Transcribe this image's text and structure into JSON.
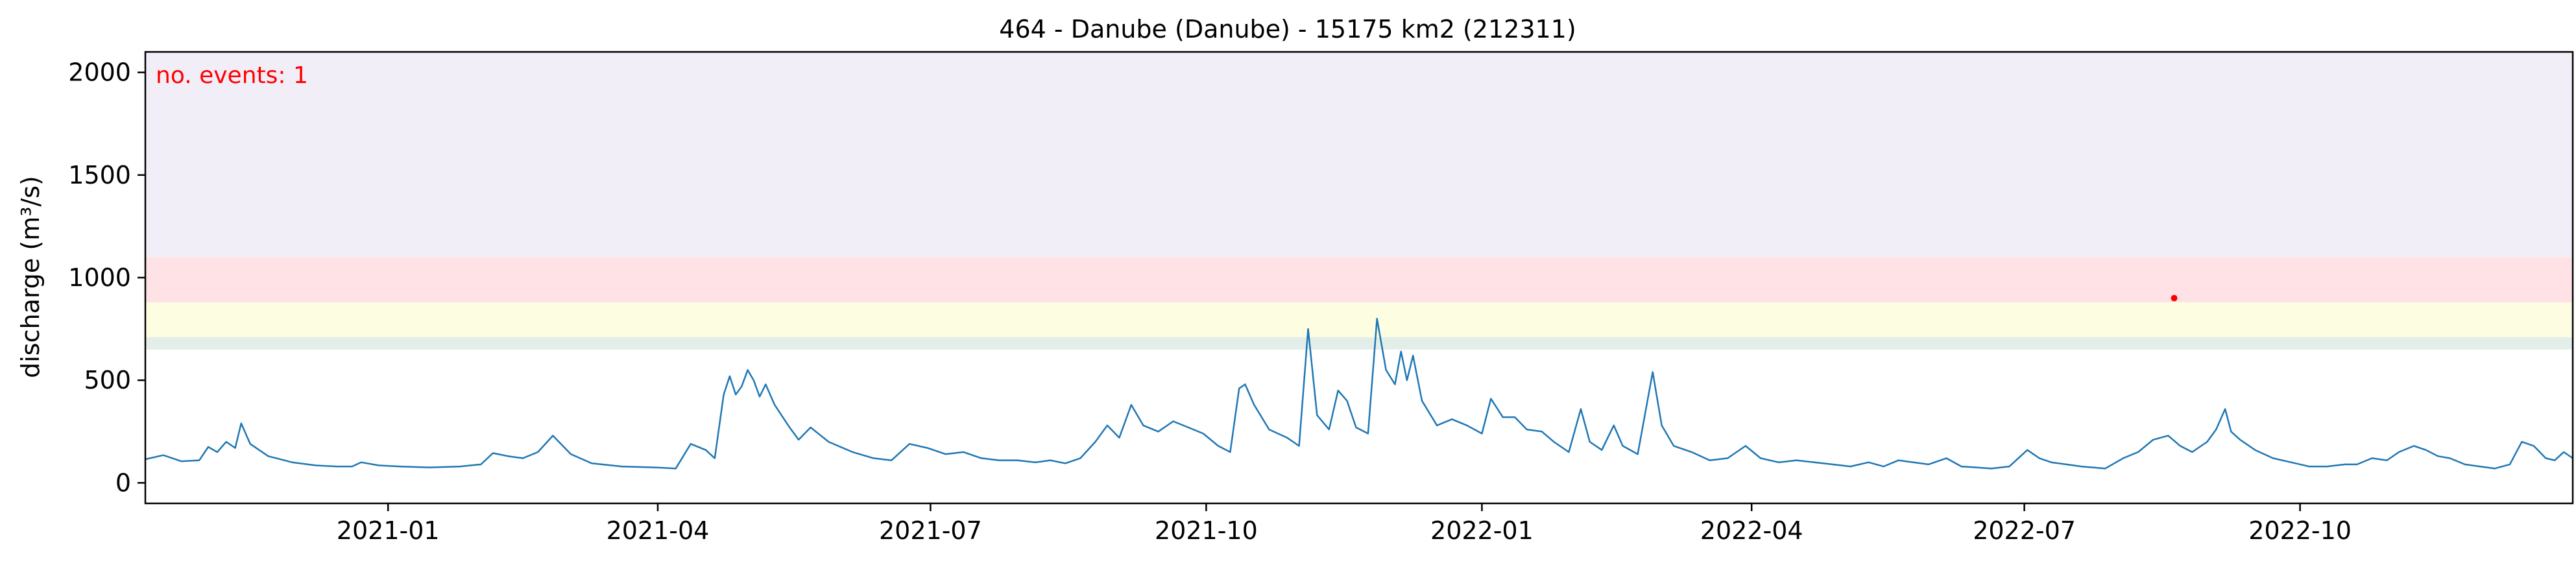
{
  "chart_data": {
    "type": "line",
    "title": "464 - Danube (Danube) - 15175 km2 (212311)",
    "xlabel": "",
    "ylabel": "discharge (m³/s)",
    "xlim": [
      "2020-10-12",
      "2022-12-31"
    ],
    "ylim": [
      -100,
      2100
    ],
    "x_ticks": [
      "2021-01",
      "2021-04",
      "2021-07",
      "2021-10",
      "2022-01",
      "2022-04",
      "2022-07",
      "2022-10"
    ],
    "x_tick_dates": [
      "2021-01-01",
      "2021-04-01",
      "2021-07-01",
      "2021-10-01",
      "2022-01-01",
      "2022-04-01",
      "2022-07-01",
      "2022-10-01"
    ],
    "y_ticks": [
      0,
      500,
      1000,
      1500,
      2000
    ],
    "grid": false,
    "threshold_bands": [
      {
        "from": 650,
        "to": 710,
        "color": "#e3eee8"
      },
      {
        "from": 710,
        "to": 880,
        "color": "#fdfde2"
      },
      {
        "from": 880,
        "to": 1100,
        "color": "#fee2e5"
      },
      {
        "from": 1100,
        "to": 2100,
        "color": "#f1eef8"
      }
    ],
    "annotation": {
      "text": "no. events: 1",
      "color": "#ff0000",
      "position": "top-left"
    },
    "events": [
      {
        "x": "2022-08-20",
        "y": 900,
        "color": "#ff0000"
      }
    ],
    "series": [
      {
        "color": "#1f77b4",
        "points": [
          [
            "2020-10-12",
            115
          ],
          [
            "2020-10-18",
            135
          ],
          [
            "2020-10-24",
            105
          ],
          [
            "2020-10-30",
            110
          ],
          [
            "2020-11-02",
            175
          ],
          [
            "2020-11-05",
            150
          ],
          [
            "2020-11-08",
            200
          ],
          [
            "2020-11-11",
            170
          ],
          [
            "2020-11-13",
            290
          ],
          [
            "2020-11-16",
            190
          ],
          [
            "2020-11-22",
            130
          ],
          [
            "2020-11-30",
            100
          ],
          [
            "2020-12-08",
            85
          ],
          [
            "2020-12-15",
            80
          ],
          [
            "2020-12-20",
            80
          ],
          [
            "2020-12-23",
            100
          ],
          [
            "2020-12-29",
            85
          ],
          [
            "2021-01-05",
            80
          ],
          [
            "2021-01-15",
            75
          ],
          [
            "2021-01-25",
            80
          ],
          [
            "2021-02-01",
            90
          ],
          [
            "2021-02-05",
            145
          ],
          [
            "2021-02-10",
            130
          ],
          [
            "2021-02-15",
            120
          ],
          [
            "2021-02-20",
            150
          ],
          [
            "2021-02-25",
            230
          ],
          [
            "2021-03-03",
            140
          ],
          [
            "2021-03-10",
            95
          ],
          [
            "2021-03-20",
            80
          ],
          [
            "2021-03-31",
            75
          ],
          [
            "2021-04-07",
            70
          ],
          [
            "2021-04-12",
            190
          ],
          [
            "2021-04-17",
            160
          ],
          [
            "2021-04-20",
            120
          ],
          [
            "2021-04-23",
            430
          ],
          [
            "2021-04-25",
            520
          ],
          [
            "2021-04-27",
            430
          ],
          [
            "2021-04-29",
            470
          ],
          [
            "2021-05-01",
            550
          ],
          [
            "2021-05-03",
            500
          ],
          [
            "2021-05-05",
            420
          ],
          [
            "2021-05-07",
            480
          ],
          [
            "2021-05-10",
            380
          ],
          [
            "2021-05-15",
            270
          ],
          [
            "2021-05-18",
            210
          ],
          [
            "2021-05-22",
            270
          ],
          [
            "2021-05-28",
            200
          ],
          [
            "2021-06-05",
            150
          ],
          [
            "2021-06-12",
            120
          ],
          [
            "2021-06-18",
            110
          ],
          [
            "2021-06-24",
            190
          ],
          [
            "2021-06-30",
            170
          ],
          [
            "2021-07-06",
            140
          ],
          [
            "2021-07-12",
            150
          ],
          [
            "2021-07-18",
            120
          ],
          [
            "2021-07-24",
            110
          ],
          [
            "2021-07-30",
            110
          ],
          [
            "2021-08-05",
            100
          ],
          [
            "2021-08-10",
            110
          ],
          [
            "2021-08-15",
            95
          ],
          [
            "2021-08-20",
            120
          ],
          [
            "2021-08-25",
            200
          ],
          [
            "2021-08-29",
            280
          ],
          [
            "2021-09-02",
            220
          ],
          [
            "2021-09-06",
            380
          ],
          [
            "2021-09-10",
            280
          ],
          [
            "2021-09-15",
            250
          ],
          [
            "2021-09-20",
            300
          ],
          [
            "2021-09-25",
            270
          ],
          [
            "2021-09-30",
            240
          ],
          [
            "2021-10-05",
            180
          ],
          [
            "2021-10-09",
            150
          ],
          [
            "2021-10-12",
            460
          ],
          [
            "2021-10-14",
            480
          ],
          [
            "2021-10-17",
            380
          ],
          [
            "2021-10-22",
            260
          ],
          [
            "2021-10-28",
            220
          ],
          [
            "2021-11-01",
            180
          ],
          [
            "2021-11-04",
            750
          ],
          [
            "2021-11-07",
            330
          ],
          [
            "2021-11-11",
            260
          ],
          [
            "2021-11-14",
            450
          ],
          [
            "2021-11-17",
            400
          ],
          [
            "2021-11-20",
            270
          ],
          [
            "2021-11-24",
            240
          ],
          [
            "2021-11-27",
            800
          ],
          [
            "2021-11-30",
            550
          ],
          [
            "2021-12-03",
            480
          ],
          [
            "2021-12-05",
            640
          ],
          [
            "2021-12-07",
            500
          ],
          [
            "2021-12-09",
            620
          ],
          [
            "2021-12-12",
            400
          ],
          [
            "2021-12-17",
            280
          ],
          [
            "2021-12-22",
            310
          ],
          [
            "2021-12-27",
            280
          ],
          [
            "2022-01-01",
            240
          ],
          [
            "2022-01-04",
            410
          ],
          [
            "2022-01-08",
            320
          ],
          [
            "2022-01-12",
            320
          ],
          [
            "2022-01-16",
            260
          ],
          [
            "2022-01-21",
            250
          ],
          [
            "2022-01-25",
            200
          ],
          [
            "2022-01-30",
            150
          ],
          [
            "2022-02-03",
            360
          ],
          [
            "2022-02-06",
            200
          ],
          [
            "2022-02-10",
            160
          ],
          [
            "2022-02-14",
            280
          ],
          [
            "2022-02-17",
            180
          ],
          [
            "2022-02-22",
            140
          ],
          [
            "2022-02-27",
            540
          ],
          [
            "2022-03-02",
            280
          ],
          [
            "2022-03-06",
            180
          ],
          [
            "2022-03-12",
            150
          ],
          [
            "2022-03-18",
            110
          ],
          [
            "2022-03-24",
            120
          ],
          [
            "2022-03-30",
            180
          ],
          [
            "2022-04-04",
            120
          ],
          [
            "2022-04-10",
            100
          ],
          [
            "2022-04-16",
            110
          ],
          [
            "2022-04-22",
            100
          ],
          [
            "2022-04-28",
            90
          ],
          [
            "2022-05-04",
            80
          ],
          [
            "2022-05-10",
            100
          ],
          [
            "2022-05-15",
            80
          ],
          [
            "2022-05-20",
            110
          ],
          [
            "2022-05-25",
            100
          ],
          [
            "2022-05-30",
            90
          ],
          [
            "2022-06-05",
            120
          ],
          [
            "2022-06-10",
            80
          ],
          [
            "2022-06-20",
            70
          ],
          [
            "2022-06-26",
            80
          ],
          [
            "2022-07-02",
            160
          ],
          [
            "2022-07-06",
            120
          ],
          [
            "2022-07-10",
            100
          ],
          [
            "2022-07-15",
            90
          ],
          [
            "2022-07-20",
            80
          ],
          [
            "2022-07-28",
            70
          ],
          [
            "2022-08-03",
            120
          ],
          [
            "2022-08-08",
            150
          ],
          [
            "2022-08-13",
            210
          ],
          [
            "2022-08-18",
            230
          ],
          [
            "2022-08-22",
            180
          ],
          [
            "2022-08-26",
            150
          ],
          [
            "2022-08-31",
            200
          ],
          [
            "2022-09-03",
            260
          ],
          [
            "2022-09-06",
            360
          ],
          [
            "2022-09-08",
            250
          ],
          [
            "2022-09-11",
            210
          ],
          [
            "2022-09-16",
            160
          ],
          [
            "2022-09-22",
            120
          ],
          [
            "2022-09-28",
            100
          ],
          [
            "2022-10-04",
            80
          ],
          [
            "2022-10-10",
            80
          ],
          [
            "2022-10-16",
            90
          ],
          [
            "2022-10-20",
            90
          ],
          [
            "2022-10-25",
            120
          ],
          [
            "2022-10-30",
            110
          ],
          [
            "2022-11-03",
            150
          ],
          [
            "2022-11-08",
            180
          ],
          [
            "2022-11-12",
            160
          ],
          [
            "2022-11-16",
            130
          ],
          [
            "2022-11-20",
            120
          ],
          [
            "2022-11-25",
            90
          ],
          [
            "2022-11-30",
            80
          ],
          [
            "2022-12-05",
            70
          ],
          [
            "2022-12-10",
            90
          ],
          [
            "2022-12-14",
            200
          ],
          [
            "2022-12-18",
            180
          ],
          [
            "2022-12-22",
            120
          ],
          [
            "2022-12-25",
            110
          ],
          [
            "2022-12-28",
            150
          ],
          [
            "2022-12-31",
            120
          ]
        ]
      }
    ]
  }
}
